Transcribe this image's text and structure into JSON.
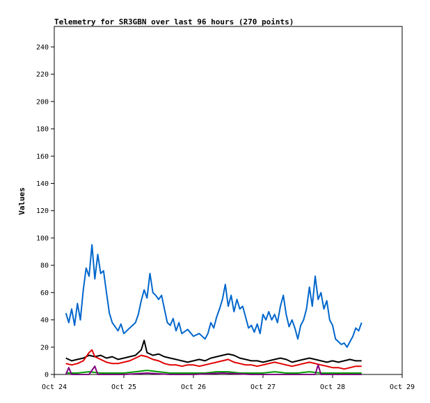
{
  "chart_data": {
    "type": "line",
    "title": "Telemetry for SR3GBN over last 96 hours (270 points)",
    "xlabel": "",
    "ylabel": "Values",
    "xlim": [
      "2024-10-24T00:00",
      "2024-10-29T00:00"
    ],
    "ylim": [
      0,
      255
    ],
    "x_tick_labels": [
      "Oct 24",
      "Oct 25",
      "Oct 26",
      "Oct 27",
      "Oct 28",
      "Oct 29"
    ],
    "y_ticks": [
      0,
      20,
      40,
      60,
      80,
      100,
      120,
      140,
      160,
      180,
      200,
      220,
      240
    ],
    "grid": false,
    "legend": "none",
    "series": [
      {
        "color": "#0066cc",
        "points": [
          [
            "2024-10-24T04:00",
            45
          ],
          [
            "2024-10-24T05:00",
            38
          ],
          [
            "2024-10-24T06:00",
            48
          ],
          [
            "2024-10-24T07:00",
            36
          ],
          [
            "2024-10-24T08:00",
            52
          ],
          [
            "2024-10-24T09:00",
            40
          ],
          [
            "2024-10-24T10:00",
            62
          ],
          [
            "2024-10-24T11:00",
            78
          ],
          [
            "2024-10-24T12:00",
            72
          ],
          [
            "2024-10-24T13:00",
            95
          ],
          [
            "2024-10-24T14:00",
            70
          ],
          [
            "2024-10-24T15:00",
            88
          ],
          [
            "2024-10-24T16:00",
            74
          ],
          [
            "2024-10-24T17:00",
            76
          ],
          [
            "2024-10-24T18:00",
            60
          ],
          [
            "2024-10-24T19:00",
            45
          ],
          [
            "2024-10-24T20:00",
            38
          ],
          [
            "2024-10-24T21:00",
            35
          ],
          [
            "2024-10-24T22:00",
            32
          ],
          [
            "2024-10-24T23:00",
            37
          ],
          [
            "2024-10-25T00:00",
            30
          ],
          [
            "2024-10-25T02:00",
            34
          ],
          [
            "2024-10-25T04:00",
            38
          ],
          [
            "2024-10-25T05:00",
            44
          ],
          [
            "2024-10-25T06:00",
            54
          ],
          [
            "2024-10-25T07:00",
            62
          ],
          [
            "2024-10-25T08:00",
            56
          ],
          [
            "2024-10-25T09:00",
            74
          ],
          [
            "2024-10-25T10:00",
            60
          ],
          [
            "2024-10-25T11:00",
            58
          ],
          [
            "2024-10-25T12:00",
            55
          ],
          [
            "2024-10-25T13:00",
            58
          ],
          [
            "2024-10-25T14:00",
            48
          ],
          [
            "2024-10-25T15:00",
            38
          ],
          [
            "2024-10-25T16:00",
            36
          ],
          [
            "2024-10-25T17:00",
            41
          ],
          [
            "2024-10-25T18:00",
            32
          ],
          [
            "2024-10-25T19:00",
            38
          ],
          [
            "2024-10-25T20:00",
            30
          ],
          [
            "2024-10-25T22:00",
            33
          ],
          [
            "2024-10-26T00:00",
            28
          ],
          [
            "2024-10-26T02:00",
            30
          ],
          [
            "2024-10-26T04:00",
            26
          ],
          [
            "2024-10-26T05:00",
            30
          ],
          [
            "2024-10-26T06:00",
            38
          ],
          [
            "2024-10-26T07:00",
            34
          ],
          [
            "2024-10-26T08:00",
            42
          ],
          [
            "2024-10-26T09:00",
            48
          ],
          [
            "2024-10-26T10:00",
            55
          ],
          [
            "2024-10-26T11:00",
            66
          ],
          [
            "2024-10-26T12:00",
            50
          ],
          [
            "2024-10-26T13:00",
            58
          ],
          [
            "2024-10-26T14:00",
            46
          ],
          [
            "2024-10-26T15:00",
            55
          ],
          [
            "2024-10-26T16:00",
            48
          ],
          [
            "2024-10-26T17:00",
            50
          ],
          [
            "2024-10-26T18:00",
            42
          ],
          [
            "2024-10-26T19:00",
            34
          ],
          [
            "2024-10-26T20:00",
            36
          ],
          [
            "2024-10-26T21:00",
            31
          ],
          [
            "2024-10-26T22:00",
            37
          ],
          [
            "2024-10-26T23:00",
            30
          ],
          [
            "2024-10-27T00:00",
            44
          ],
          [
            "2024-10-27T01:00",
            40
          ],
          [
            "2024-10-27T02:00",
            46
          ],
          [
            "2024-10-27T03:00",
            40
          ],
          [
            "2024-10-27T04:00",
            44
          ],
          [
            "2024-10-27T05:00",
            38
          ],
          [
            "2024-10-27T06:00",
            50
          ],
          [
            "2024-10-27T07:00",
            58
          ],
          [
            "2024-10-27T08:00",
            44
          ],
          [
            "2024-10-27T09:00",
            35
          ],
          [
            "2024-10-27T10:00",
            40
          ],
          [
            "2024-10-27T11:00",
            34
          ],
          [
            "2024-10-27T12:00",
            26
          ],
          [
            "2024-10-27T13:00",
            36
          ],
          [
            "2024-10-27T14:00",
            40
          ],
          [
            "2024-10-27T15:00",
            48
          ],
          [
            "2024-10-27T16:00",
            64
          ],
          [
            "2024-10-27T17:00",
            50
          ],
          [
            "2024-10-27T18:00",
            72
          ],
          [
            "2024-10-27T19:00",
            55
          ],
          [
            "2024-10-27T20:00",
            60
          ],
          [
            "2024-10-27T21:00",
            48
          ],
          [
            "2024-10-27T22:00",
            54
          ],
          [
            "2024-10-27T23:00",
            40
          ],
          [
            "2024-10-28T00:00",
            36
          ],
          [
            "2024-10-28T01:00",
            26
          ],
          [
            "2024-10-28T02:00",
            24
          ],
          [
            "2024-10-28T03:00",
            22
          ],
          [
            "2024-10-28T04:00",
            23
          ],
          [
            "2024-10-28T05:00",
            20
          ],
          [
            "2024-10-28T06:00",
            24
          ],
          [
            "2024-10-28T07:00",
            28
          ],
          [
            "2024-10-28T08:00",
            34
          ],
          [
            "2024-10-28T09:00",
            32
          ],
          [
            "2024-10-28T10:00",
            38
          ]
        ]
      },
      {
        "color": "#000000",
        "points": [
          [
            "2024-10-24T04:00",
            12
          ],
          [
            "2024-10-24T06:00",
            10
          ],
          [
            "2024-10-24T08:00",
            11
          ],
          [
            "2024-10-24T10:00",
            12
          ],
          [
            "2024-10-24T12:00",
            14
          ],
          [
            "2024-10-24T14:00",
            13
          ],
          [
            "2024-10-24T16:00",
            14
          ],
          [
            "2024-10-24T18:00",
            12
          ],
          [
            "2024-10-24T20:00",
            13
          ],
          [
            "2024-10-24T22:00",
            11
          ],
          [
            "2024-10-25T00:00",
            12
          ],
          [
            "2024-10-25T02:00",
            13
          ],
          [
            "2024-10-25T04:00",
            14
          ],
          [
            "2024-10-25T06:00",
            18
          ],
          [
            "2024-10-25T07:00",
            25
          ],
          [
            "2024-10-25T08:00",
            16
          ],
          [
            "2024-10-25T10:00",
            14
          ],
          [
            "2024-10-25T12:00",
            15
          ],
          [
            "2024-10-25T14:00",
            13
          ],
          [
            "2024-10-25T16:00",
            12
          ],
          [
            "2024-10-25T18:00",
            11
          ],
          [
            "2024-10-25T20:00",
            10
          ],
          [
            "2024-10-25T22:00",
            9
          ],
          [
            "2024-10-26T00:00",
            10
          ],
          [
            "2024-10-26T02:00",
            11
          ],
          [
            "2024-10-26T04:00",
            10
          ],
          [
            "2024-10-26T06:00",
            12
          ],
          [
            "2024-10-26T08:00",
            13
          ],
          [
            "2024-10-26T10:00",
            14
          ],
          [
            "2024-10-26T12:00",
            15
          ],
          [
            "2024-10-26T14:00",
            14
          ],
          [
            "2024-10-26T16:00",
            12
          ],
          [
            "2024-10-26T18:00",
            11
          ],
          [
            "2024-10-26T20:00",
            10
          ],
          [
            "2024-10-26T22:00",
            10
          ],
          [
            "2024-10-27T00:00",
            9
          ],
          [
            "2024-10-27T02:00",
            10
          ],
          [
            "2024-10-27T04:00",
            11
          ],
          [
            "2024-10-27T06:00",
            12
          ],
          [
            "2024-10-27T08:00",
            11
          ],
          [
            "2024-10-27T10:00",
            9
          ],
          [
            "2024-10-27T12:00",
            10
          ],
          [
            "2024-10-27T14:00",
            11
          ],
          [
            "2024-10-27T16:00",
            12
          ],
          [
            "2024-10-27T18:00",
            11
          ],
          [
            "2024-10-27T20:00",
            10
          ],
          [
            "2024-10-27T22:00",
            9
          ],
          [
            "2024-10-28T00:00",
            10
          ],
          [
            "2024-10-28T02:00",
            9
          ],
          [
            "2024-10-28T04:00",
            10
          ],
          [
            "2024-10-28T06:00",
            11
          ],
          [
            "2024-10-28T08:00",
            10
          ],
          [
            "2024-10-28T10:00",
            10
          ]
        ]
      },
      {
        "color": "#e00000",
        "points": [
          [
            "2024-10-24T04:00",
            8
          ],
          [
            "2024-10-24T06:00",
            7
          ],
          [
            "2024-10-24T08:00",
            8
          ],
          [
            "2024-10-24T10:00",
            10
          ],
          [
            "2024-10-24T12:00",
            16
          ],
          [
            "2024-10-24T13:00",
            18
          ],
          [
            "2024-10-24T14:00",
            13
          ],
          [
            "2024-10-24T16:00",
            11
          ],
          [
            "2024-10-24T18:00",
            9
          ],
          [
            "2024-10-24T20:00",
            8
          ],
          [
            "2024-10-24T22:00",
            8
          ],
          [
            "2024-10-25T00:00",
            9
          ],
          [
            "2024-10-25T02:00",
            10
          ],
          [
            "2024-10-25T04:00",
            12
          ],
          [
            "2024-10-25T06:00",
            14
          ],
          [
            "2024-10-25T08:00",
            13
          ],
          [
            "2024-10-25T10:00",
            11
          ],
          [
            "2024-10-25T12:00",
            10
          ],
          [
            "2024-10-25T14:00",
            8
          ],
          [
            "2024-10-25T16:00",
            7
          ],
          [
            "2024-10-25T18:00",
            7
          ],
          [
            "2024-10-25T20:00",
            6
          ],
          [
            "2024-10-25T22:00",
            7
          ],
          [
            "2024-10-26T00:00",
            7
          ],
          [
            "2024-10-26T02:00",
            6
          ],
          [
            "2024-10-26T04:00",
            7
          ],
          [
            "2024-10-26T06:00",
            8
          ],
          [
            "2024-10-26T08:00",
            9
          ],
          [
            "2024-10-26T10:00",
            10
          ],
          [
            "2024-10-26T12:00",
            11
          ],
          [
            "2024-10-26T14:00",
            9
          ],
          [
            "2024-10-26T16:00",
            8
          ],
          [
            "2024-10-26T18:00",
            7
          ],
          [
            "2024-10-26T20:00",
            7
          ],
          [
            "2024-10-26T22:00",
            6
          ],
          [
            "2024-10-27T00:00",
            7
          ],
          [
            "2024-10-27T02:00",
            8
          ],
          [
            "2024-10-27T04:00",
            9
          ],
          [
            "2024-10-27T06:00",
            8
          ],
          [
            "2024-10-27T08:00",
            7
          ],
          [
            "2024-10-27T10:00",
            6
          ],
          [
            "2024-10-27T12:00",
            7
          ],
          [
            "2024-10-27T14:00",
            8
          ],
          [
            "2024-10-27T16:00",
            9
          ],
          [
            "2024-10-27T18:00",
            8
          ],
          [
            "2024-10-27T20:00",
            7
          ],
          [
            "2024-10-27T22:00",
            6
          ],
          [
            "2024-10-28T00:00",
            5
          ],
          [
            "2024-10-28T02:00",
            5
          ],
          [
            "2024-10-28T04:00",
            4
          ],
          [
            "2024-10-28T06:00",
            5
          ],
          [
            "2024-10-28T08:00",
            6
          ],
          [
            "2024-10-28T10:00",
            6
          ]
        ]
      },
      {
        "color": "#009900",
        "points": [
          [
            "2024-10-24T04:00",
            1
          ],
          [
            "2024-10-24T08:00",
            1
          ],
          [
            "2024-10-24T12:00",
            2
          ],
          [
            "2024-10-24T16:00",
            1
          ],
          [
            "2024-10-24T20:00",
            1
          ],
          [
            "2024-10-25T00:00",
            1
          ],
          [
            "2024-10-25T04:00",
            2
          ],
          [
            "2024-10-25T08:00",
            3
          ],
          [
            "2024-10-25T12:00",
            2
          ],
          [
            "2024-10-25T16:00",
            1
          ],
          [
            "2024-10-25T20:00",
            1
          ],
          [
            "2024-10-26T00:00",
            1
          ],
          [
            "2024-10-26T04:00",
            1
          ],
          [
            "2024-10-26T08:00",
            2
          ],
          [
            "2024-10-26T12:00",
            2
          ],
          [
            "2024-10-26T16:00",
            1
          ],
          [
            "2024-10-26T20:00",
            1
          ],
          [
            "2024-10-27T00:00",
            1
          ],
          [
            "2024-10-27T04:00",
            2
          ],
          [
            "2024-10-27T08:00",
            1
          ],
          [
            "2024-10-27T12:00",
            1
          ],
          [
            "2024-10-27T16:00",
            2
          ],
          [
            "2024-10-27T20:00",
            1
          ],
          [
            "2024-10-28T00:00",
            1
          ],
          [
            "2024-10-28T04:00",
            1
          ],
          [
            "2024-10-28T08:00",
            1
          ],
          [
            "2024-10-28T10:00",
            1
          ]
        ]
      },
      {
        "color": "#800080",
        "points": [
          [
            "2024-10-24T04:00",
            0
          ],
          [
            "2024-10-24T05:00",
            5
          ],
          [
            "2024-10-24T06:00",
            0
          ],
          [
            "2024-10-24T12:00",
            0
          ],
          [
            "2024-10-24T14:00",
            6
          ],
          [
            "2024-10-24T15:00",
            0
          ],
          [
            "2024-10-25T00:00",
            0
          ],
          [
            "2024-10-25T08:00",
            1
          ],
          [
            "2024-10-25T16:00",
            0
          ],
          [
            "2024-10-26T00:00",
            0
          ],
          [
            "2024-10-26T10:00",
            1
          ],
          [
            "2024-10-26T20:00",
            0
          ],
          [
            "2024-10-27T00:00",
            0
          ],
          [
            "2024-10-27T12:00",
            0
          ],
          [
            "2024-10-27T18:00",
            0
          ],
          [
            "2024-10-27T19:00",
            7
          ],
          [
            "2024-10-27T20:00",
            0
          ],
          [
            "2024-10-28T00:00",
            0
          ],
          [
            "2024-10-28T10:00",
            0
          ]
        ]
      }
    ]
  }
}
